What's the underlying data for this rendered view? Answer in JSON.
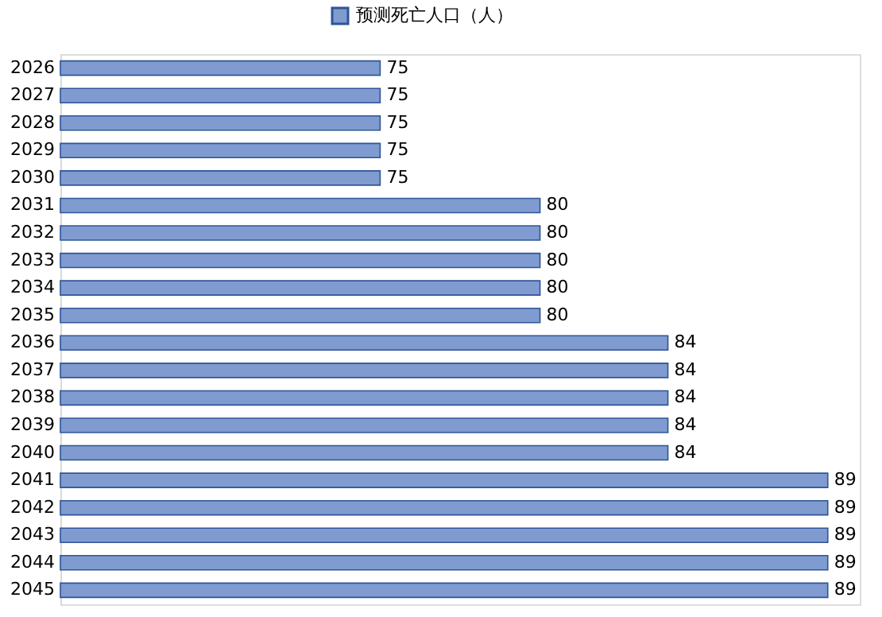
{
  "chart_data": {
    "type": "bar",
    "orientation": "horizontal",
    "categories": [
      "2026",
      "2027",
      "2028",
      "2029",
      "2030",
      "2031",
      "2032",
      "2033",
      "2034",
      "2035",
      "2036",
      "2037",
      "2038",
      "2039",
      "2040",
      "2041",
      "2042",
      "2043",
      "2044",
      "2045"
    ],
    "series": [
      {
        "name": "预测死亡人口（人）",
        "color": "#7f9bd0",
        "values": [
          75,
          75,
          75,
          75,
          75,
          80,
          80,
          80,
          80,
          80,
          84,
          84,
          84,
          84,
          84,
          89,
          89,
          89,
          89,
          89
        ]
      }
    ],
    "xlim": [
      65,
      90
    ],
    "data_labels": true,
    "legend": "top",
    "tick_labels": "y"
  }
}
